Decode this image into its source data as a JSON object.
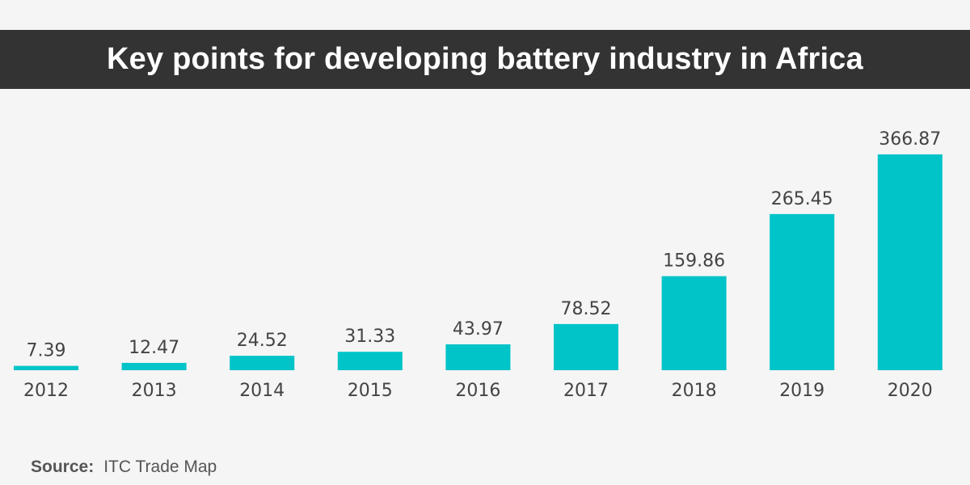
{
  "title": "Key points for developing battery industry in Africa",
  "source": {
    "label": "Source:",
    "value": "ITC Trade Map"
  },
  "colors": {
    "bar": "#00c4c8",
    "header": "#333333",
    "background": "#f5f5f5",
    "text": "#444444"
  },
  "chart_data": {
    "type": "bar",
    "title": "Key points for developing battery industry in Africa",
    "categories": [
      "2012",
      "2013",
      "2014",
      "2015",
      "2016",
      "2017",
      "2018",
      "2019",
      "2020"
    ],
    "values": [
      7.39,
      12.47,
      24.52,
      31.33,
      43.97,
      78.52,
      159.86,
      265.45,
      366.87
    ],
    "data_labels": [
      "7.39",
      "12.47",
      "24.52",
      "31.33",
      "43.97",
      "78.52",
      "159.86",
      "265.45",
      "366.87"
    ],
    "xlabel": "",
    "ylabel": "",
    "ylim": [
      0,
      366.87
    ],
    "grid": false,
    "legend": "none"
  }
}
